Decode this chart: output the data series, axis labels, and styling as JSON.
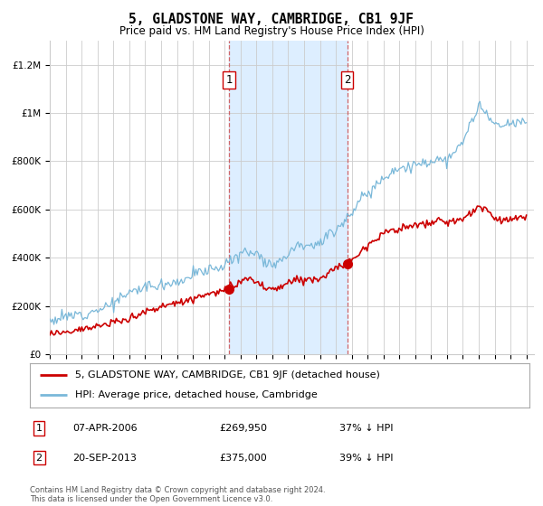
{
  "title": "5, GLADSTONE WAY, CAMBRIDGE, CB1 9JF",
  "subtitle": "Price paid vs. HM Land Registry's House Price Index (HPI)",
  "hpi_label": "HPI: Average price, detached house, Cambridge",
  "property_label": "5, GLADSTONE WAY, CAMBRIDGE, CB1 9JF (detached house)",
  "transaction1_date": "07-APR-2006",
  "transaction1_price": "£269,950",
  "transaction1_hpi": "37% ↓ HPI",
  "transaction2_date": "20-SEP-2013",
  "transaction2_price": "£375,000",
  "transaction2_hpi": "39% ↓ HPI",
  "footer": "Contains HM Land Registry data © Crown copyright and database right 2024.\nThis data is licensed under the Open Government Licence v3.0.",
  "hpi_color": "#7ab8d9",
  "property_color": "#cc0000",
  "transaction1_x": 2006.27,
  "transaction2_x": 2013.72,
  "transaction1_price_val": 269950,
  "transaction2_price_val": 375000,
  "shaded_region_start": 2006.27,
  "shaded_region_end": 2013.72,
  "ylim_min": 0,
  "ylim_max": 1300000,
  "xlim_min": 1995.0,
  "xlim_max": 2025.5,
  "background_color": "#ffffff",
  "shaded_color": "#ddeeff",
  "grid_color": "#cccccc",
  "yticks": [
    0,
    200000,
    400000,
    600000,
    800000,
    1000000,
    1200000
  ],
  "ytick_labels": [
    "£0",
    "£200K",
    "£400K",
    "£600K",
    "£800K",
    "£1M",
    "£1.2M"
  ],
  "xticks": [
    1995,
    1996,
    1997,
    1998,
    1999,
    2000,
    2001,
    2002,
    2003,
    2004,
    2005,
    2006,
    2007,
    2008,
    2009,
    2010,
    2011,
    2012,
    2013,
    2014,
    2015,
    2016,
    2017,
    2018,
    2019,
    2020,
    2021,
    2022,
    2023,
    2024,
    2025
  ]
}
